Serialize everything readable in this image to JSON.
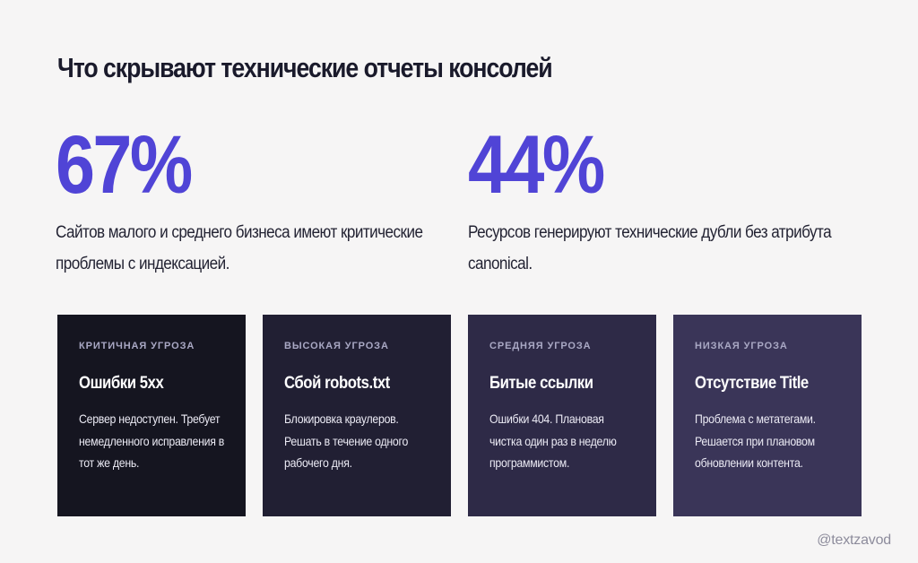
{
  "title": "Что скрывают технические отчеты консолей",
  "stats": [
    {
      "value": "67%",
      "text": "Сайтов малого и среднего бизнеса имеют критические проблемы с индексацией."
    },
    {
      "value": "44%",
      "text": "Ресурсов генерируют технические дубли без атрибута canonical."
    }
  ],
  "colors": {
    "background": "#f6f5f5",
    "accent": "#5044d6",
    "card_critical": "#151520",
    "card_high": "#211f33",
    "card_medium": "#2e2a47",
    "card_low": "#3a3558"
  },
  "cards": [
    {
      "label": "КРИТИЧНАЯ УГРОЗА",
      "title": "Ошибки 5xx",
      "text": "Сервер недоступен. Требует немедленного исправления в тот же день."
    },
    {
      "label": "ВЫСОКАЯ УГРОЗА",
      "title": "Сбой robots.txt",
      "text": "Блокировка краулеров. Решать в течение одного рабочего дня."
    },
    {
      "label": "СРЕДНЯЯ УГРОЗА",
      "title": "Битые ссылки",
      "text": "Ошибки 404. Плановая чистка один раз в неделю программистом."
    },
    {
      "label": "НИЗКАЯ УГРОЗА",
      "title": "Отсутствие Title",
      "text": "Проблема с метатегами. Решается при плановом обновлении контента."
    }
  ],
  "handle": "@textzavod"
}
